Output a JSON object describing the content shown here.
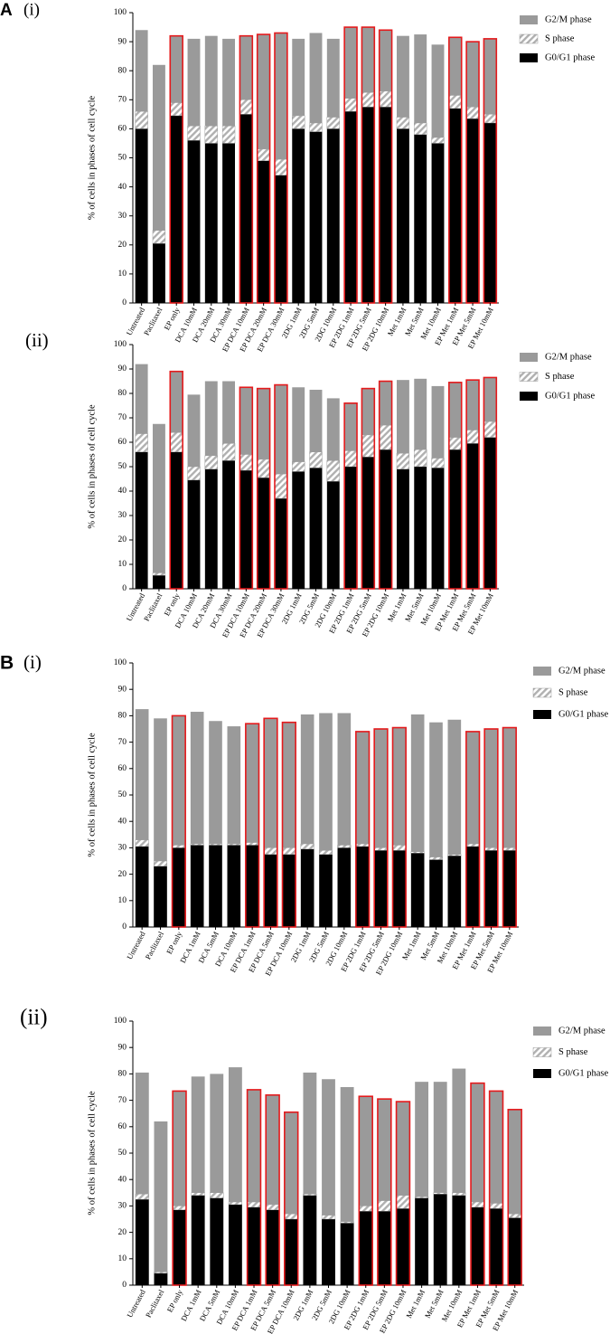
{
  "chart_data": [
    {
      "type": "bar",
      "stacked": true,
      "panel_letter": "A",
      "panel_number": "(i)",
      "ylabel": "% of cells in phases of cell cycle",
      "categories": [
        "Untreated",
        "Paclitaxel",
        "EP only",
        "DCA 10mM",
        "DCA 20mM",
        "DCA 30mM",
        "EP DCA 10mM",
        "EP DCA 20mM",
        "EP DCA 30mM",
        "2DG 1mM",
        "2DG 5mM",
        "2DG 10mM",
        "EP 2DG 1mM",
        "EP 2DG 5mM",
        "EP 2DG 10mM",
        "Met 1mM",
        "Met 5mM",
        "Met 10mM",
        "EP Met 1mM",
        "EP Met 5mM",
        "EP Met 10mM"
      ],
      "series": [
        {
          "name": "G0/G1 phase",
          "color": "#000000",
          "values": [
            60,
            20.5,
            64.5,
            56,
            55,
            55,
            65,
            49,
            44,
            60,
            59,
            60,
            66,
            67.5,
            67.5,
            60,
            58,
            55,
            67,
            63.5,
            62
          ]
        },
        {
          "name": "S phase",
          "color": "#b0b0b0",
          "hatch": true,
          "values": [
            6,
            4.5,
            4.5,
            5,
            6,
            6,
            5,
            4,
            5.5,
            4.5,
            3,
            4,
            4.5,
            5,
            5.5,
            4,
            4,
            2,
            4.5,
            4,
            3
          ]
        },
        {
          "name": "G2/M phase",
          "color": "#9a9a9a",
          "values": [
            28,
            57,
            23,
            30,
            31,
            30,
            22,
            39.5,
            43.5,
            26.5,
            31,
            27,
            24.5,
            22.5,
            21,
            28,
            30.5,
            32,
            20,
            22.5,
            26
          ]
        }
      ],
      "outlined": [
        false,
        false,
        true,
        false,
        false,
        false,
        true,
        true,
        true,
        false,
        false,
        false,
        true,
        true,
        true,
        false,
        false,
        false,
        true,
        true,
        true
      ],
      "outline_color": "#e41a1c",
      "legend": "right",
      "ylim": [
        0,
        100
      ],
      "yticks": [
        0,
        10,
        20,
        30,
        40,
        50,
        60,
        70,
        80,
        90,
        100
      ]
    },
    {
      "type": "bar",
      "stacked": true,
      "panel_number": "(ii)",
      "ylabel": "% of cells in phases of cell cycle",
      "categories": [
        "Untreated",
        "Paclitaxel",
        "EP only",
        "DCA 10mM",
        "DCA 20mM",
        "DCA 30mM",
        "EP DCA 10mM",
        "EP DCA 20mM",
        "EP DCA 30mM",
        "2DG 1mM",
        "2DG 5mM",
        "2DG 10mM",
        "EP 2DG 1mM",
        "EP 2DG 5mM",
        "EP 2DG 10mM",
        "Met 1mM",
        "Met 5mM",
        "Met 10mM",
        "EP Met 1mM",
        "EP Met 5mM",
        "EP Met 10mM"
      ],
      "series": [
        {
          "name": "G0/G1 phase",
          "color": "#000000",
          "values": [
            56,
            5.5,
            56,
            44.5,
            49,
            52.5,
            48.5,
            45.5,
            37,
            48,
            49.5,
            44,
            50,
            54,
            57,
            49,
            50,
            49.5,
            57,
            59.5,
            62
          ]
        },
        {
          "name": "S phase",
          "color": "#b0b0b0",
          "hatch": true,
          "values": [
            7.5,
            1,
            8,
            5.5,
            5.5,
            7,
            6.5,
            7.5,
            10,
            4,
            6.5,
            8.5,
            6.5,
            9,
            10,
            6.5,
            7,
            4,
            5,
            5.5,
            6.5
          ]
        },
        {
          "name": "G2/M phase",
          "color": "#9a9a9a",
          "values": [
            28.5,
            61,
            25,
            29.5,
            30.5,
            25.5,
            27.5,
            29,
            36.5,
            30.5,
            25.5,
            25.5,
            19.5,
            19,
            18,
            30,
            29,
            29.5,
            22.5,
            20.5,
            18
          ]
        }
      ],
      "outlined": [
        false,
        false,
        true,
        false,
        false,
        false,
        true,
        true,
        true,
        false,
        false,
        false,
        true,
        true,
        true,
        false,
        false,
        false,
        true,
        true,
        true
      ],
      "outline_color": "#e41a1c",
      "legend": "right",
      "ylim": [
        0,
        100
      ],
      "yticks": [
        0,
        10,
        20,
        30,
        40,
        50,
        60,
        70,
        80,
        90,
        100
      ]
    },
    {
      "type": "bar",
      "stacked": true,
      "panel_letter": "B",
      "panel_number": "(i)",
      "ylabel": "% of cells in phases of cell cycle",
      "categories": [
        "Untreated",
        "Paclitaxel",
        "EP only",
        "DCA 1mM",
        "DCA 5mM",
        "DCA 10mM",
        "EP DCA 1mM",
        "EP DCA 5mM",
        "EP DCA 10mM",
        "2DG 1mM",
        "2DG 5mM",
        "2DG 10mM",
        "EP 2DG 1mM",
        "EP 2DG 5mM",
        "EP 2DG 10mM",
        "Met 1mM",
        "Met 5mM",
        "Met 10mM",
        "EP Met 1mM",
        "EP Met 5mM",
        "EP Met 10mM"
      ],
      "series": [
        {
          "name": "G0/G1 phase",
          "color": "#000000",
          "values": [
            30.5,
            23,
            30,
            31,
            31,
            31,
            31,
            27.5,
            27.5,
            29.5,
            27.5,
            30,
            30.5,
            29,
            29,
            28,
            25.5,
            27,
            30.5,
            29,
            29
          ]
        },
        {
          "name": "S phase",
          "color": "#b0b0b0",
          "hatch": true,
          "values": [
            2.5,
            2,
            1,
            0.5,
            0.5,
            0.5,
            1,
            2.5,
            2.5,
            2,
            1.5,
            1,
            1,
            1,
            2,
            0.5,
            1,
            0.5,
            1,
            1,
            1
          ]
        },
        {
          "name": "G2/M phase",
          "color": "#9a9a9a",
          "values": [
            49.5,
            54,
            49,
            50,
            46.5,
            44.5,
            45,
            49,
            47.5,
            49,
            52,
            50,
            42.5,
            45,
            44.5,
            52,
            51,
            51,
            42.5,
            45,
            45.5
          ]
        }
      ],
      "outlined": [
        false,
        false,
        true,
        false,
        false,
        false,
        true,
        true,
        true,
        false,
        false,
        false,
        true,
        true,
        true,
        false,
        false,
        false,
        true,
        true,
        true
      ],
      "outline_color": "#e41a1c",
      "legend": "right",
      "ylim": [
        0,
        100
      ],
      "yticks": [
        0,
        10,
        20,
        30,
        40,
        50,
        60,
        70,
        80,
        90,
        100
      ]
    },
    {
      "type": "bar",
      "stacked": true,
      "panel_number": "(ii)",
      "ylabel": "% of cells in phases of cell cycle",
      "categories": [
        "Untreated",
        "Paclitaxel",
        "EP only",
        "DCA 1mM",
        "DCA 5mM",
        "DCA 10mM",
        "EP DCA 1mM",
        "EP DCA 5mM",
        "EP DCA 10mM",
        "2DG 1mM",
        "2DG 5mM",
        "2DG 10mM",
        "EP 2DG 1mM",
        "EP 2DG 5mM",
        "EP 2DG 10mM",
        "Met 1mM",
        "Met 5mM",
        "Met 10mM",
        "EP Met 1mM",
        "EP Met 5mM",
        "EP Met 10mM"
      ],
      "series": [
        {
          "name": "G0/G1 phase",
          "color": "#000000",
          "values": [
            32.5,
            4.5,
            28.5,
            34,
            33,
            30.5,
            29.5,
            28.5,
            25,
            34,
            25,
            23.5,
            28,
            28,
            29,
            33,
            34.5,
            34,
            29.5,
            29,
            25.5
          ]
        },
        {
          "name": "S phase",
          "color": "#b0b0b0",
          "hatch": true,
          "values": [
            2,
            0.5,
            1.5,
            1,
            2,
            1,
            2,
            2,
            2,
            0.5,
            1.5,
            0.5,
            2,
            4,
            5,
            0.5,
            0.5,
            1,
            2,
            2,
            1.5
          ]
        },
        {
          "name": "G2/M phase",
          "color": "#9a9a9a",
          "values": [
            46,
            57,
            43.5,
            44,
            45,
            51,
            42.5,
            41.5,
            38.5,
            46,
            51.5,
            51,
            41.5,
            38.5,
            35.5,
            43.5,
            42,
            47,
            45,
            42.5,
            39.5
          ]
        }
      ],
      "outlined": [
        false,
        false,
        true,
        false,
        false,
        false,
        true,
        true,
        true,
        false,
        false,
        false,
        true,
        true,
        true,
        false,
        false,
        false,
        true,
        true,
        true
      ],
      "outline_color": "#e41a1c",
      "legend": "right",
      "ylim": [
        0,
        100
      ],
      "yticks": [
        0,
        10,
        20,
        30,
        40,
        50,
        60,
        70,
        80,
        90,
        100
      ]
    }
  ]
}
